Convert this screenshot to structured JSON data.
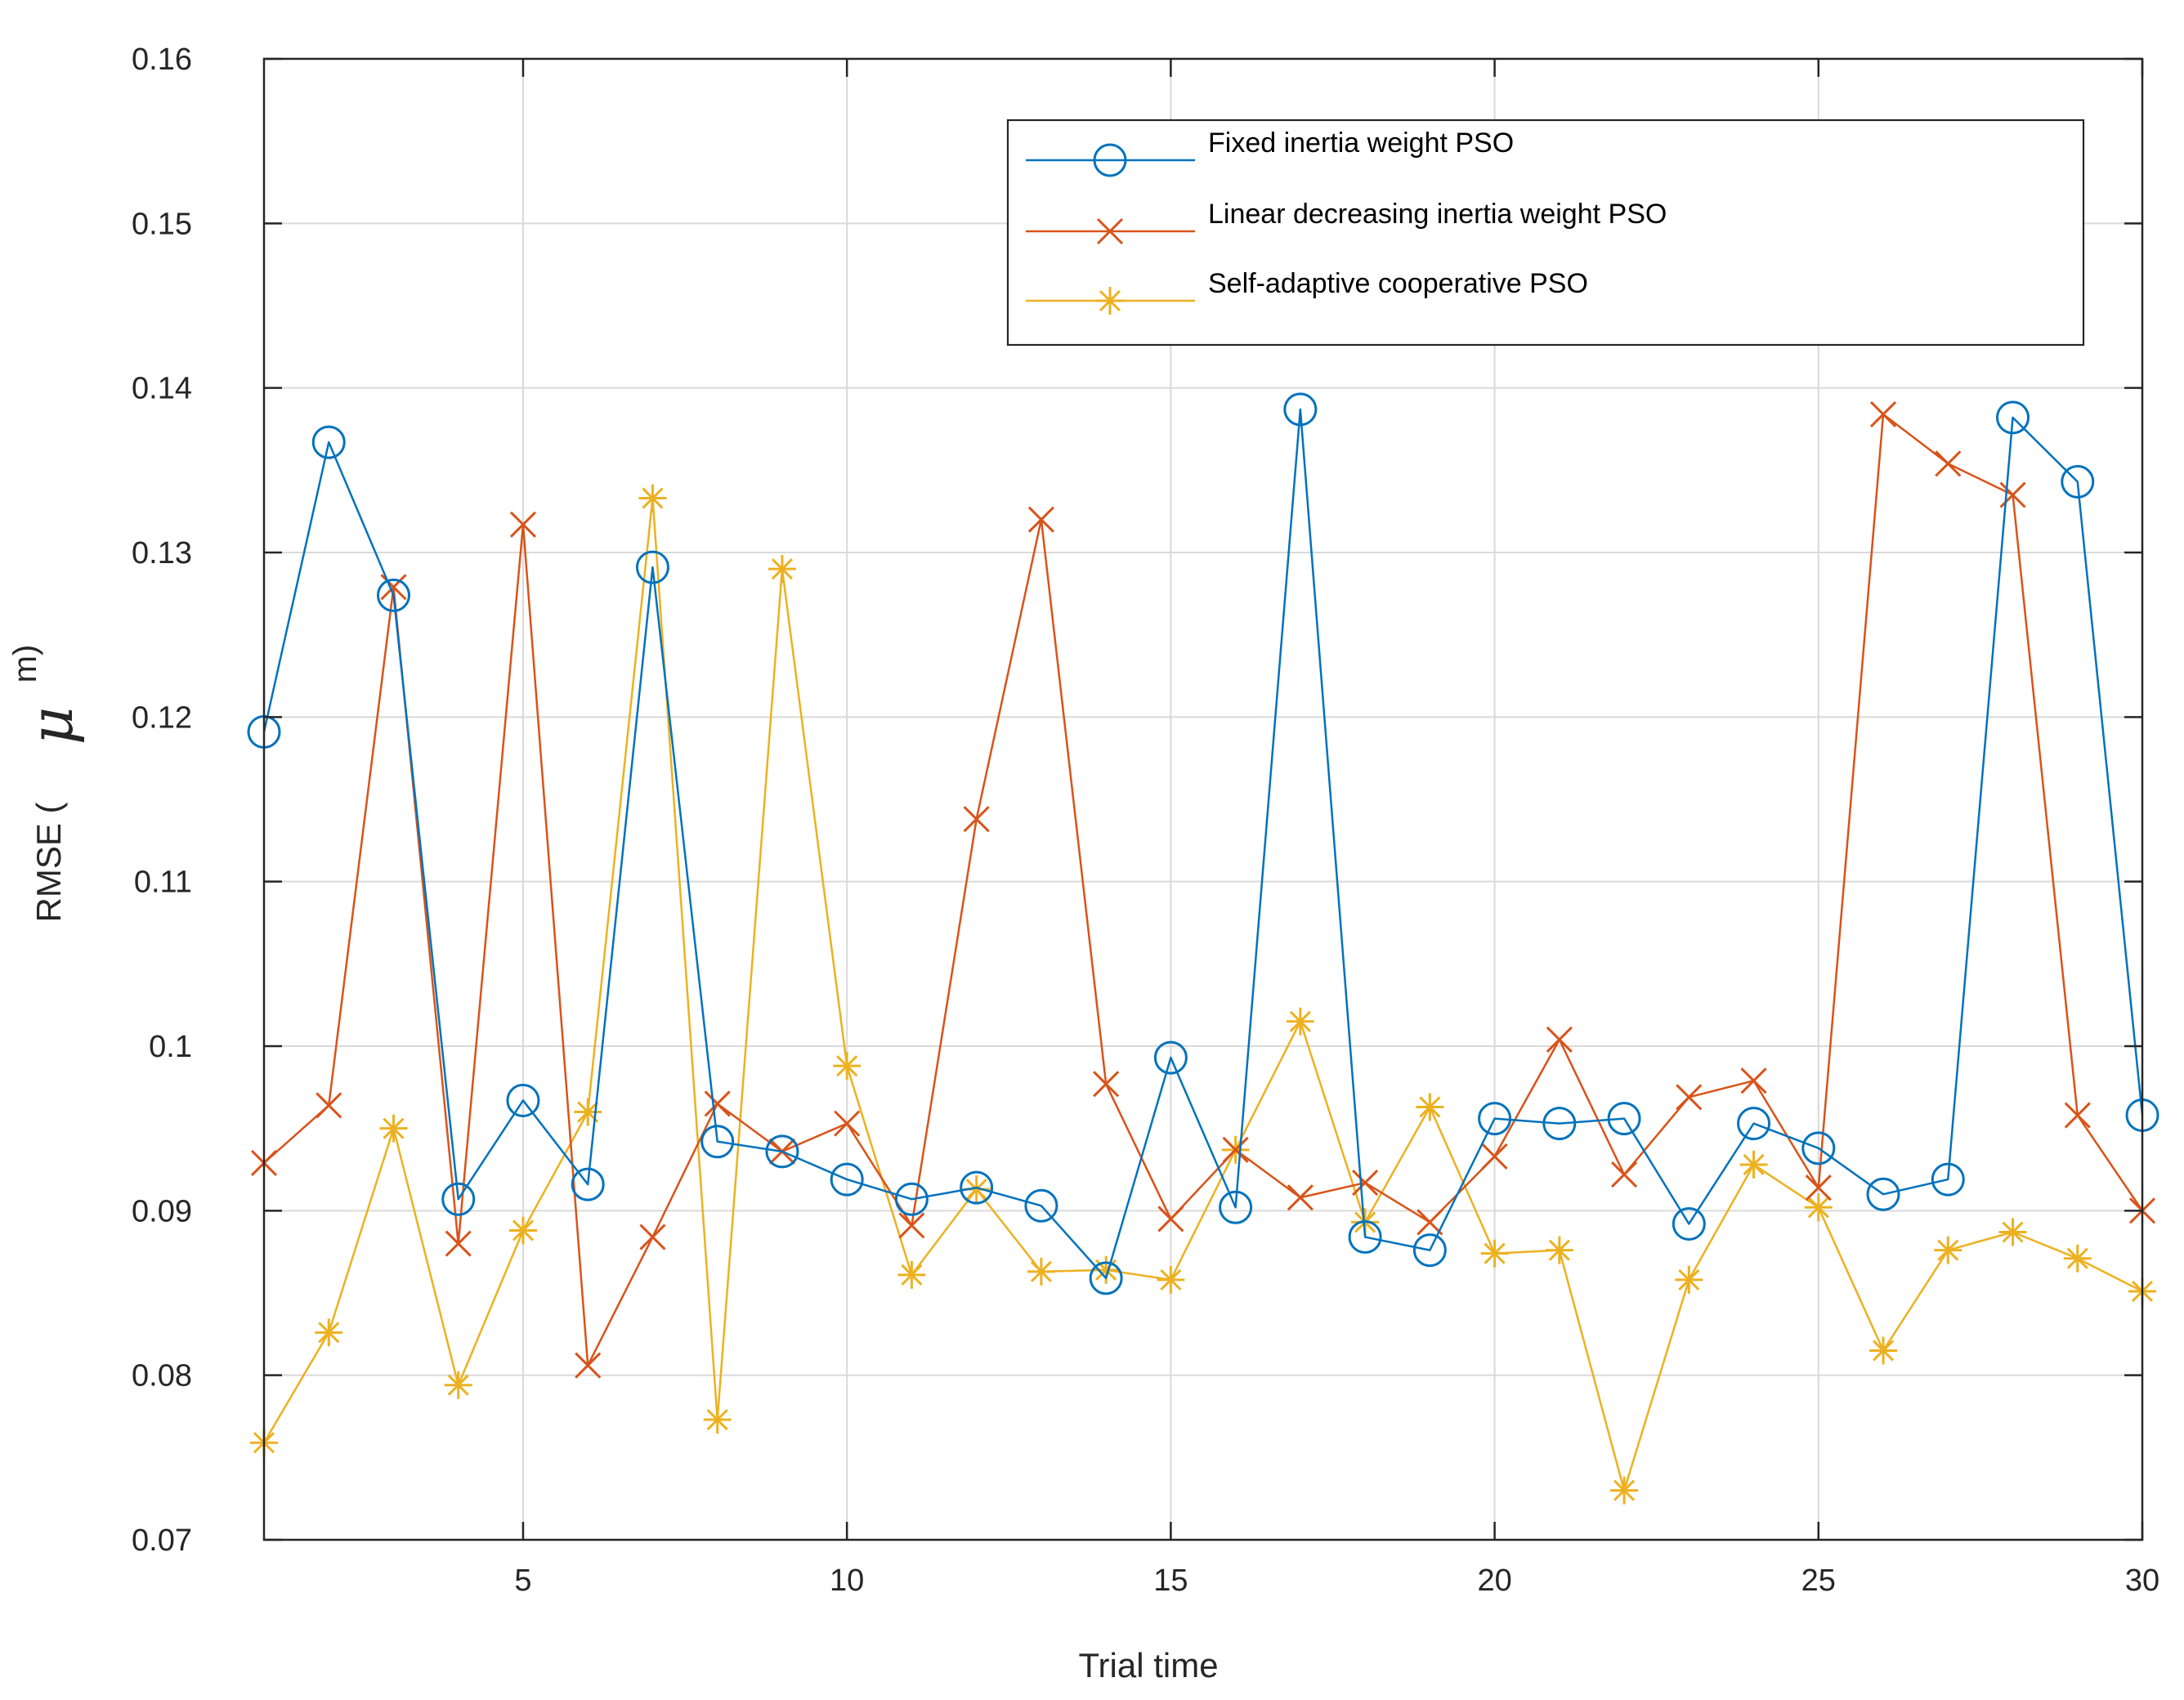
{
  "chart_data": {
    "type": "line",
    "title": "",
    "xlabel": "Trial time",
    "ylabel": {
      "prefix": "RMSE (",
      "symbol": "μ",
      "superscript": "m)"
    },
    "xlim": [
      1,
      30
    ],
    "ylim": [
      0.07,
      0.16
    ],
    "grid": true,
    "legend_position": "top-right",
    "x_ticks": [
      {
        "value": 5,
        "label": "5"
      },
      {
        "value": 10,
        "label": "10"
      },
      {
        "value": 15,
        "label": "15"
      },
      {
        "value": 20,
        "label": "20"
      },
      {
        "value": 25,
        "label": "25"
      },
      {
        "value": 30,
        "label": "30"
      }
    ],
    "y_ticks": [
      {
        "value": 0.07,
        "label": "0.07"
      },
      {
        "value": 0.08,
        "label": "0.08"
      },
      {
        "value": 0.09,
        "label": "0.09"
      },
      {
        "value": 0.1,
        "label": "0.1"
      },
      {
        "value": 0.11,
        "label": "0.11"
      },
      {
        "value": 0.12,
        "label": "0.12"
      },
      {
        "value": 0.13,
        "label": "0.13"
      },
      {
        "value": 0.14,
        "label": "0.14"
      },
      {
        "value": 0.15,
        "label": "0.15"
      },
      {
        "value": 0.16,
        "label": "0.16"
      }
    ],
    "x": [
      1,
      2,
      3,
      4,
      5,
      6,
      7,
      8,
      9,
      10,
      11,
      12,
      13,
      14,
      15,
      16,
      17,
      18,
      19,
      20,
      21,
      22,
      23,
      24,
      25,
      26,
      27,
      28,
      29,
      30
    ],
    "series": [
      {
        "name": "Fixed inertia weight PSO",
        "color": "#0072BD",
        "marker": "circle",
        "values": [
          0.1191,
          0.1367,
          0.1274,
          0.0907,
          0.0967,
          0.0916,
          0.1291,
          0.0942,
          0.0936,
          0.0919,
          0.0907,
          0.0914,
          0.0903,
          0.0859,
          0.0993,
          0.0902,
          0.1387,
          0.0884,
          0.0876,
          0.0956,
          0.0953,
          0.0956,
          0.0892,
          0.0953,
          0.0938,
          0.091,
          0.0919,
          0.1382,
          0.1343,
          0.0958
        ]
      },
      {
        "name": "Linear decreasing inertia weight PSO",
        "color": "#D95319",
        "marker": "x",
        "values": [
          0.0929,
          0.0964,
          0.1279,
          0.088,
          0.1317,
          0.0806,
          0.0884,
          0.0965,
          0.0936,
          0.0953,
          0.0891,
          0.1138,
          0.132,
          0.0977,
          0.0895,
          0.0937,
          0.0908,
          0.0917,
          0.0893,
          0.0933,
          0.1004,
          0.0922,
          0.0969,
          0.0979,
          0.0914,
          0.1384,
          0.1354,
          0.1335,
          0.0958,
          0.09
        ]
      },
      {
        "name": "Self-adaptive cooperative PSO",
        "color": "#EDB120",
        "marker": "asterisk",
        "values": [
          0.0759,
          0.0826,
          0.095,
          0.0794,
          0.0888,
          0.096,
          0.1333,
          0.0773,
          0.129,
          0.0988,
          0.0861,
          0.0913,
          0.0863,
          0.0864,
          0.0858,
          0.0937,
          0.1015,
          0.0893,
          0.0963,
          0.0874,
          0.0876,
          0.073,
          0.0858,
          0.0928,
          0.0902,
          0.0815,
          0.0876,
          0.0887,
          0.0871,
          0.0851
        ]
      }
    ]
  }
}
